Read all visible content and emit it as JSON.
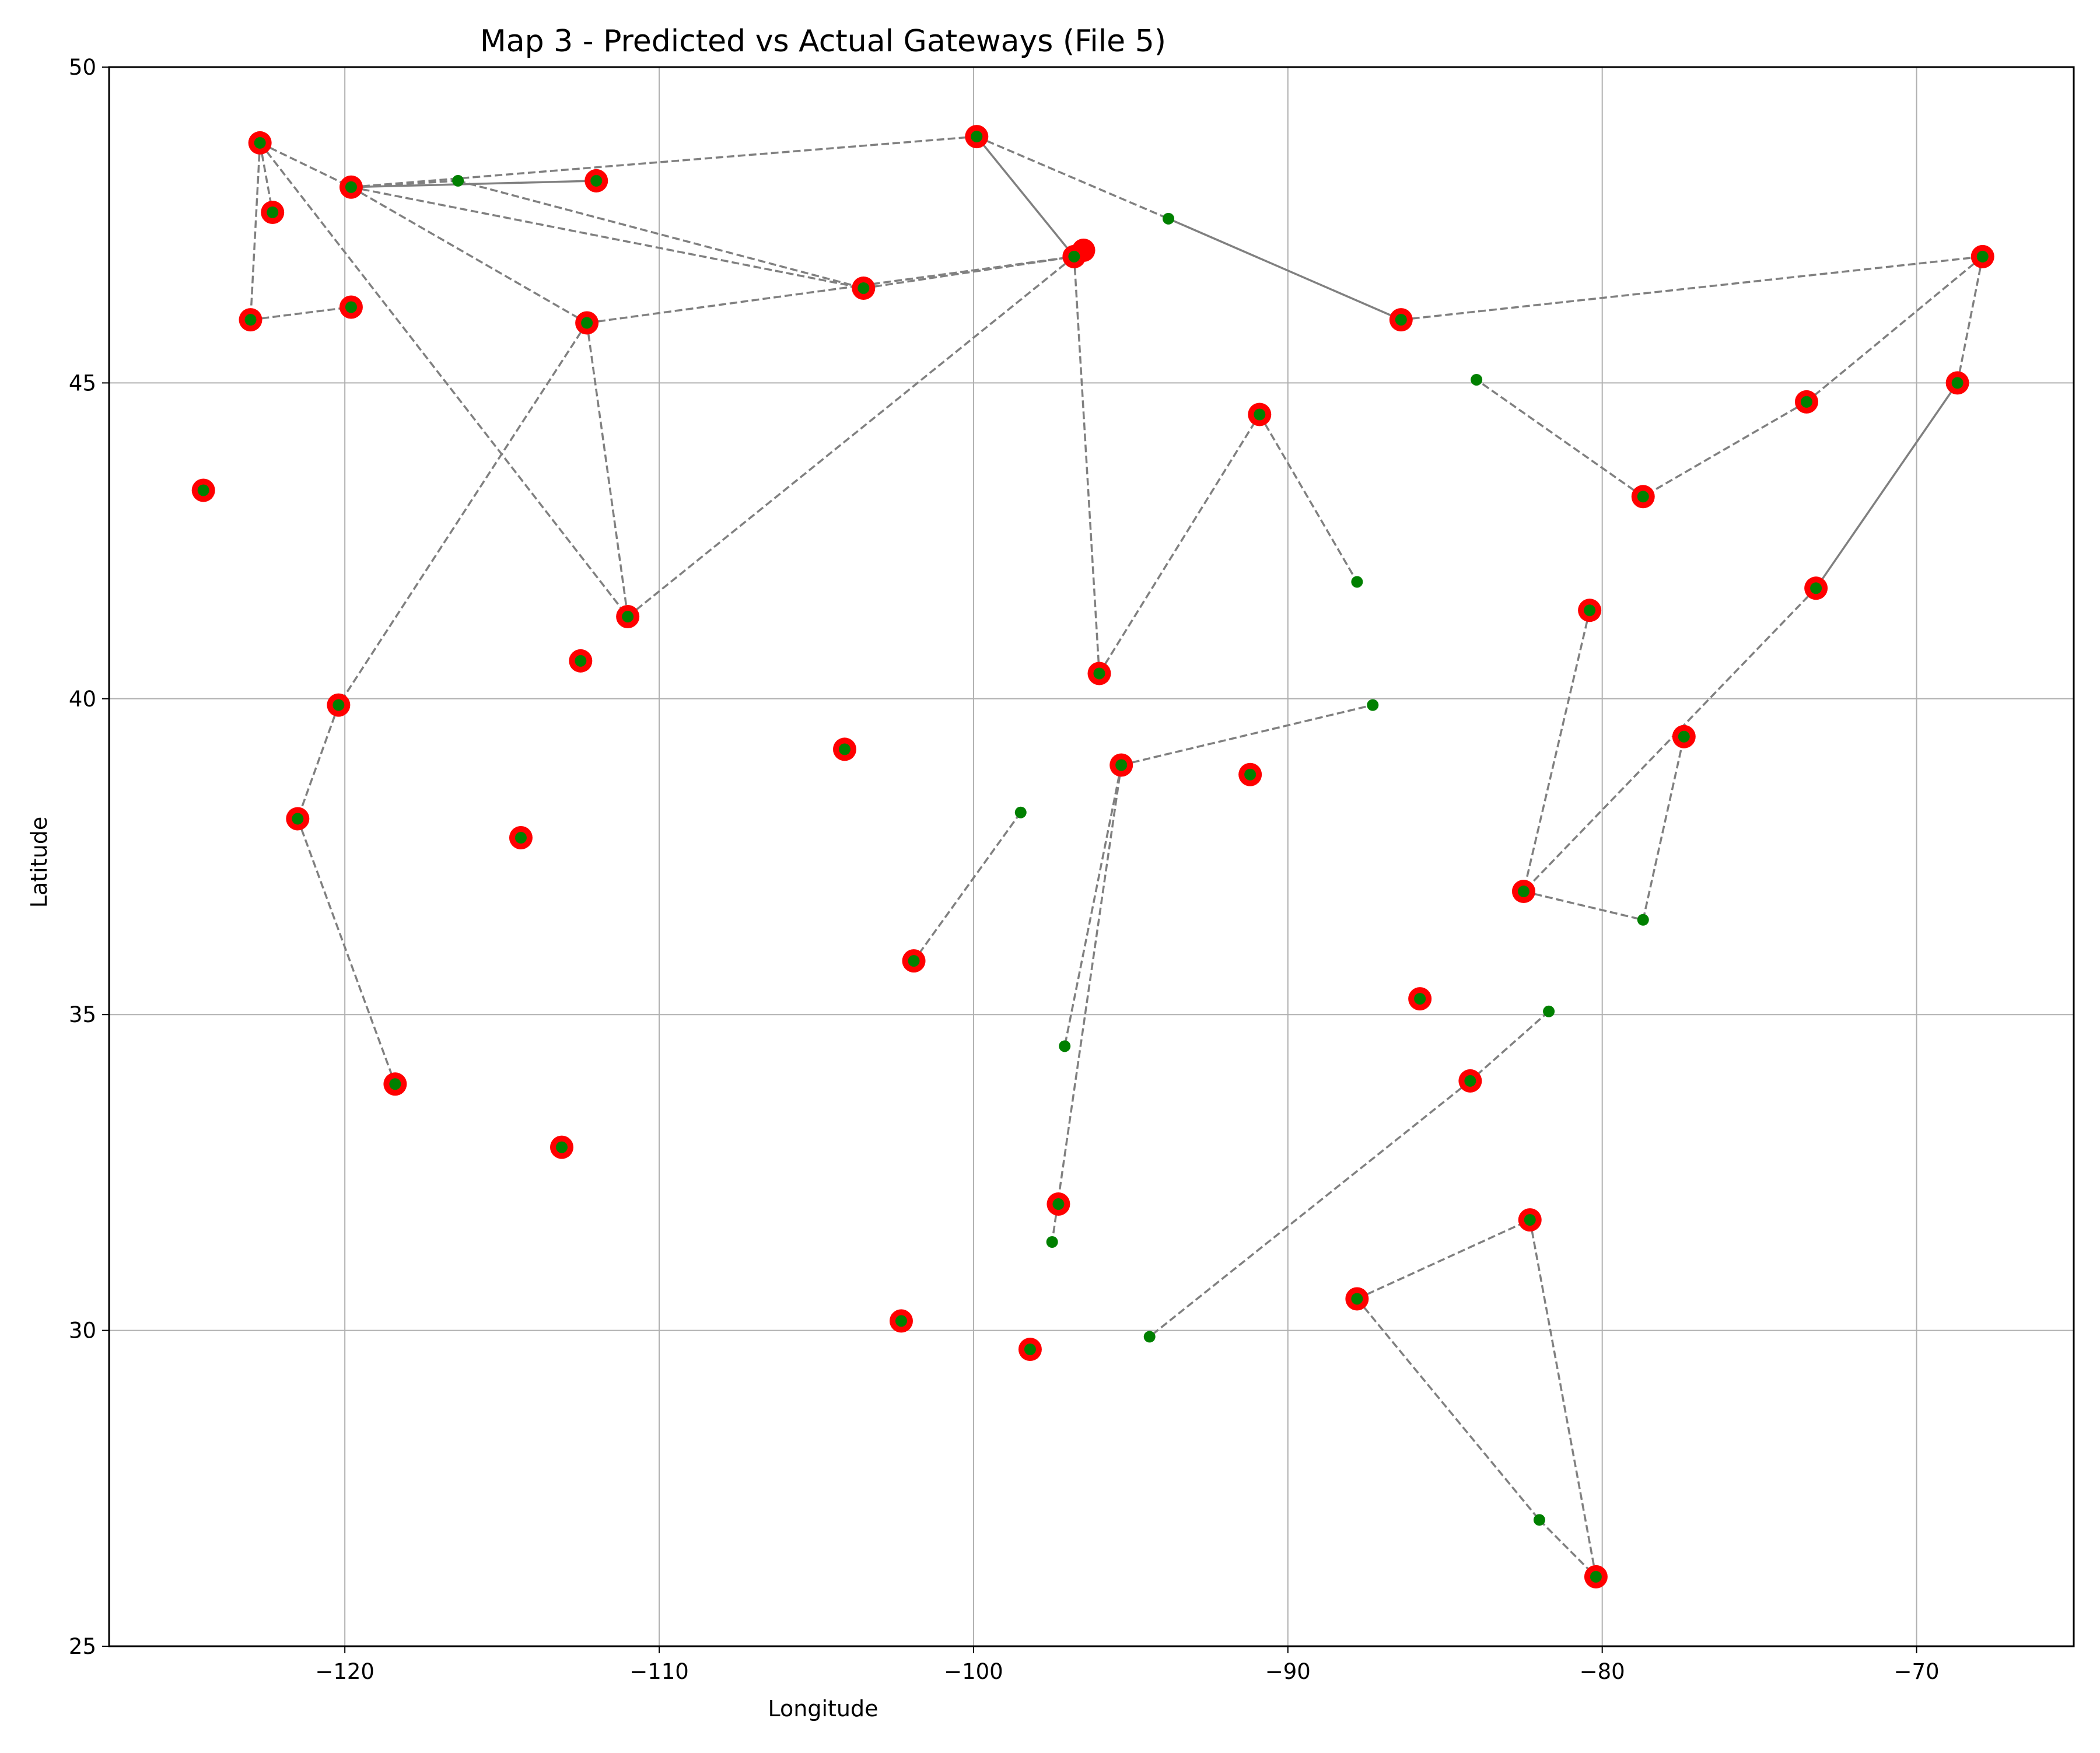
{
  "chart_data": {
    "type": "scatter",
    "title": "Map 3 - Predicted vs Actual Gateways (File 5)",
    "xlabel": "Longitude",
    "ylabel": "Latitude",
    "xlim": [
      -127.5,
      -65.0
    ],
    "ylim": [
      25,
      50
    ],
    "xticks": [
      -120,
      -110,
      -100,
      -90,
      -80,
      -70
    ],
    "yticks": [
      25,
      30,
      35,
      40,
      45,
      50
    ],
    "grid": true,
    "legend": "none",
    "colors": {
      "predicted": "#ff0000",
      "actual": "#008000",
      "link": "#808080"
    },
    "series": [
      {
        "role": "predicted",
        "color": "#ff0000",
        "points": [
          [
            -122.7,
            48.8
          ],
          [
            -122.3,
            47.7
          ],
          [
            -123.0,
            46.0
          ],
          [
            -119.8,
            48.1
          ],
          [
            -119.8,
            46.2
          ],
          [
            -124.5,
            43.3
          ],
          [
            -112.0,
            48.2
          ],
          [
            -112.3,
            45.95
          ],
          [
            -111.0,
            41.3
          ],
          [
            -112.5,
            40.6
          ],
          [
            -103.5,
            46.5
          ],
          [
            -96.5,
            47.1
          ],
          [
            -96.8,
            47.0
          ],
          [
            -99.9,
            48.9
          ],
          [
            -86.4,
            46.0
          ],
          [
            -90.9,
            44.5
          ],
          [
            -96.0,
            40.4
          ],
          [
            -95.3,
            38.95
          ],
          [
            -91.2,
            38.8
          ],
          [
            -67.9,
            47.0
          ],
          [
            -68.7,
            45.0
          ],
          [
            -73.5,
            44.7
          ],
          [
            -78.7,
            43.2
          ],
          [
            -73.2,
            41.75
          ],
          [
            -80.4,
            41.4
          ],
          [
            -77.4,
            39.4
          ],
          [
            -82.5,
            36.95
          ],
          [
            -120.2,
            39.9
          ],
          [
            -121.5,
            38.1
          ],
          [
            -118.4,
            33.9
          ],
          [
            -114.4,
            37.8
          ],
          [
            -113.1,
            32.9
          ],
          [
            -104.1,
            39.2
          ],
          [
            -101.9,
            35.85
          ],
          [
            -102.3,
            30.15
          ],
          [
            -98.2,
            29.7
          ],
          [
            -97.3,
            32.0
          ],
          [
            -85.8,
            35.25
          ],
          [
            -84.2,
            33.95
          ],
          [
            -82.3,
            31.75
          ],
          [
            -87.8,
            30.5
          ],
          [
            -80.2,
            26.1
          ]
        ]
      },
      {
        "role": "actual",
        "color": "#008000",
        "points": [
          [
            -122.7,
            48.8
          ],
          [
            -122.3,
            47.7
          ],
          [
            -123.0,
            46.0
          ],
          [
            -119.8,
            48.1
          ],
          [
            -119.8,
            46.2
          ],
          [
            -124.5,
            43.3
          ],
          [
            -116.4,
            48.2
          ],
          [
            -112.0,
            48.2
          ],
          [
            -112.3,
            45.95
          ],
          [
            -111.0,
            41.3
          ],
          [
            -112.5,
            40.6
          ],
          [
            -103.5,
            46.5
          ],
          [
            -96.8,
            47.0
          ],
          [
            -99.9,
            48.9
          ],
          [
            -93.8,
            47.6
          ],
          [
            -86.4,
            46.0
          ],
          [
            -90.9,
            44.5
          ],
          [
            -87.8,
            41.85
          ],
          [
            -96.0,
            40.4
          ],
          [
            -95.3,
            38.95
          ],
          [
            -87.3,
            39.9
          ],
          [
            -91.2,
            38.8
          ],
          [
            -67.9,
            47.0
          ],
          [
            -68.7,
            45.0
          ],
          [
            -84.0,
            45.05
          ],
          [
            -73.5,
            44.7
          ],
          [
            -78.7,
            43.2
          ],
          [
            -73.2,
            41.75
          ],
          [
            -80.4,
            41.4
          ],
          [
            -77.4,
            39.4
          ],
          [
            -82.5,
            36.95
          ],
          [
            -78.7,
            36.5
          ],
          [
            -120.2,
            39.9
          ],
          [
            -121.5,
            38.1
          ],
          [
            -118.4,
            33.9
          ],
          [
            -114.4,
            37.8
          ],
          [
            -113.1,
            32.9
          ],
          [
            -104.1,
            39.2
          ],
          [
            -98.5,
            38.2
          ],
          [
            -101.9,
            35.85
          ],
          [
            -102.3,
            30.15
          ],
          [
            -98.2,
            29.7
          ],
          [
            -97.1,
            34.5
          ],
          [
            -97.3,
            32.0
          ],
          [
            -97.5,
            31.4
          ],
          [
            -85.8,
            35.25
          ],
          [
            -81.7,
            35.05
          ],
          [
            -84.2,
            33.95
          ],
          [
            -94.4,
            29.9
          ],
          [
            -82.3,
            31.75
          ],
          [
            -87.8,
            30.5
          ],
          [
            -82.0,
            27.0
          ],
          [
            -80.2,
            26.1
          ]
        ]
      }
    ],
    "links": [
      {
        "style": "dashed",
        "from": [
          -122.7,
          48.8
        ],
        "to": [
          -119.8,
          48.1
        ]
      },
      {
        "style": "dashed",
        "from": [
          -122.7,
          48.8
        ],
        "to": [
          -122.3,
          47.7
        ]
      },
      {
        "style": "dashed",
        "from": [
          -122.7,
          48.8
        ],
        "to": [
          -123.0,
          46.0
        ]
      },
      {
        "style": "dashed",
        "from": [
          -122.7,
          48.8
        ],
        "to": [
          -111.0,
          41.3
        ]
      },
      {
        "style": "dashed",
        "from": [
          -123.0,
          46.0
        ],
        "to": [
          -119.8,
          46.2
        ]
      },
      {
        "style": "dashed",
        "from": [
          -119.8,
          48.1
        ],
        "to": [
          -116.4,
          48.2
        ]
      },
      {
        "style": "solid",
        "from": [
          -119.8,
          48.1
        ],
        "to": [
          -112.0,
          48.2
        ]
      },
      {
        "style": "dashed",
        "from": [
          -119.8,
          48.1
        ],
        "to": [
          -99.9,
          48.9
        ]
      },
      {
        "style": "dashed",
        "from": [
          -119.8,
          48.1
        ],
        "to": [
          -103.5,
          46.5
        ]
      },
      {
        "style": "dashed",
        "from": [
          -119.8,
          48.1
        ],
        "to": [
          -112.3,
          45.95
        ]
      },
      {
        "style": "dashed",
        "from": [
          -116.4,
          48.2
        ],
        "to": [
          -103.5,
          46.5
        ]
      },
      {
        "style": "dashed",
        "from": [
          -103.5,
          46.5
        ],
        "to": [
          -96.8,
          47.0
        ]
      },
      {
        "style": "dashed",
        "from": [
          -112.3,
          45.95
        ],
        "to": [
          -96.8,
          47.0
        ]
      },
      {
        "style": "dashed",
        "from": [
          -112.3,
          45.95
        ],
        "to": [
          -111.0,
          41.3
        ]
      },
      {
        "style": "dashed",
        "from": [
          -112.3,
          45.95
        ],
        "to": [
          -120.2,
          39.9
        ]
      },
      {
        "style": "dashed",
        "from": [
          -111.0,
          41.3
        ],
        "to": [
          -96.8,
          47.0
        ]
      },
      {
        "style": "dashed",
        "from": [
          -120.2,
          39.9
        ],
        "to": [
          -121.5,
          38.1
        ]
      },
      {
        "style": "dashed",
        "from": [
          -121.5,
          38.1
        ],
        "to": [
          -118.4,
          33.9
        ]
      },
      {
        "style": "solid",
        "from": [
          -99.9,
          48.9
        ],
        "to": [
          -96.8,
          47.0
        ]
      },
      {
        "style": "dashed",
        "from": [
          -99.9,
          48.9
        ],
        "to": [
          -93.8,
          47.6
        ]
      },
      {
        "style": "solid",
        "from": [
          -93.8,
          47.6
        ],
        "to": [
          -86.4,
          46.0
        ]
      },
      {
        "style": "dashed",
        "from": [
          -86.4,
          46.0
        ],
        "to": [
          -67.9,
          47.0
        ]
      },
      {
        "style": "dashed",
        "from": [
          -96.8,
          47.0
        ],
        "to": [
          -96.0,
          40.4
        ]
      },
      {
        "style": "dashed",
        "from": [
          -96.0,
          40.4
        ],
        "to": [
          -90.9,
          44.5
        ]
      },
      {
        "style": "dashed",
        "from": [
          -90.9,
          44.5
        ],
        "to": [
          -87.8,
          41.85
        ]
      },
      {
        "style": "dashed",
        "from": [
          -95.3,
          38.95
        ],
        "to": [
          -87.3,
          39.9
        ]
      },
      {
        "style": "dashed",
        "from": [
          -95.3,
          38.95
        ],
        "to": [
          -97.1,
          34.5
        ]
      },
      {
        "style": "dashed",
        "from": [
          -95.3,
          38.95
        ],
        "to": [
          -97.5,
          31.4
        ]
      },
      {
        "style": "dashed",
        "from": [
          -98.5,
          38.2
        ],
        "to": [
          -101.9,
          35.85
        ]
      },
      {
        "style": "dashed",
        "from": [
          -67.9,
          47.0
        ],
        "to": [
          -68.7,
          45.0
        ]
      },
      {
        "style": "dashed",
        "from": [
          -67.9,
          47.0
        ],
        "to": [
          -73.5,
          44.7
        ]
      },
      {
        "style": "dashed",
        "from": [
          -73.5,
          44.7
        ],
        "to": [
          -78.7,
          43.2
        ]
      },
      {
        "style": "dashed",
        "from": [
          -78.7,
          43.2
        ],
        "to": [
          -84.0,
          45.05
        ]
      },
      {
        "style": "solid",
        "from": [
          -68.7,
          45.0
        ],
        "to": [
          -73.2,
          41.75
        ]
      },
      {
        "style": "dashed",
        "from": [
          -73.2,
          41.75
        ],
        "to": [
          -82.5,
          36.95
        ]
      },
      {
        "style": "dashed",
        "from": [
          -80.4,
          41.4
        ],
        "to": [
          -82.5,
          36.95
        ]
      },
      {
        "style": "dashed",
        "from": [
          -82.5,
          36.95
        ],
        "to": [
          -78.7,
          36.5
        ]
      },
      {
        "style": "dashed",
        "from": [
          -78.7,
          36.5
        ],
        "to": [
          -77.4,
          39.4
        ]
      },
      {
        "style": "dashed",
        "from": [
          -81.7,
          35.05
        ],
        "to": [
          -84.2,
          33.95
        ]
      },
      {
        "style": "dashed",
        "from": [
          -84.2,
          33.95
        ],
        "to": [
          -94.4,
          29.9
        ]
      },
      {
        "style": "dashed",
        "from": [
          -87.8,
          30.5
        ],
        "to": [
          -82.3,
          31.75
        ]
      },
      {
        "style": "dashed",
        "from": [
          -82.3,
          31.75
        ],
        "to": [
          -80.2,
          26.1
        ]
      },
      {
        "style": "dashed",
        "from": [
          -87.8,
          30.5
        ],
        "to": [
          -82.0,
          27.0
        ]
      },
      {
        "style": "dashed",
        "from": [
          -82.0,
          27.0
        ],
        "to": [
          -80.2,
          26.1
        ]
      }
    ]
  }
}
